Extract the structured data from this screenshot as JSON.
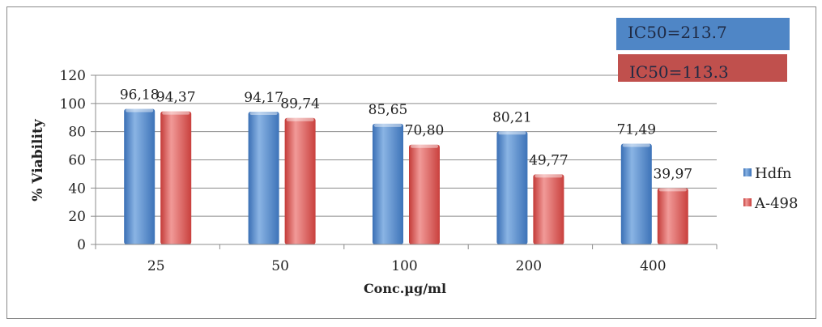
{
  "chart_data": {
    "type": "bar",
    "title": "",
    "xlabel": "Conc.µg/ml",
    "ylabel": "% Viability",
    "ylim": [
      0,
      120
    ],
    "yticks": [
      0,
      20,
      40,
      60,
      80,
      100,
      120
    ],
    "grid": true,
    "legend_position": "right",
    "categories": [
      "25",
      "50",
      "100",
      "200",
      "400"
    ],
    "series": [
      {
        "name": "Hdfn",
        "color": "#4a7fc1",
        "values": [
          96.18,
          94.17,
          85.65,
          80.21,
          71.49
        ],
        "labels": [
          "96,18",
          "94,17",
          "85,65",
          "80,21",
          "71,49"
        ]
      },
      {
        "name": "A-498",
        "color": "#d9534f",
        "values": [
          94.37,
          89.74,
          70.8,
          49.77,
          39.97
        ],
        "labels": [
          "94,37",
          "89,74",
          "70,80",
          "49,77",
          "39,97"
        ]
      }
    ],
    "annotations": [
      {
        "text": "IC50=213.7",
        "color": "#4f86c6"
      },
      {
        "text": "IC50=113.3",
        "color": "#c0504d"
      }
    ]
  }
}
